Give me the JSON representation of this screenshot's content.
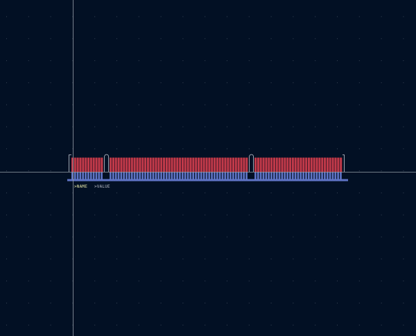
{
  "text_labels": {
    "name": ">NAME",
    "value": ">VALUE"
  },
  "colors": {
    "background": "#021024",
    "grid_dot": "#3a4658",
    "crosshair": "#9aa0aa",
    "top_copper": "#c23a4a",
    "top_copper_edge": "#5a1a28",
    "bottom_copper": "#5f74c6",
    "outline": "#c8ccd6"
  },
  "icons": {
    "cursor": "crosshair-icon"
  },
  "component": {
    "pad_groups": [
      {
        "pad_count": 12
      },
      {
        "pad_count": 52
      },
      {
        "pad_count": 33
      }
    ]
  }
}
